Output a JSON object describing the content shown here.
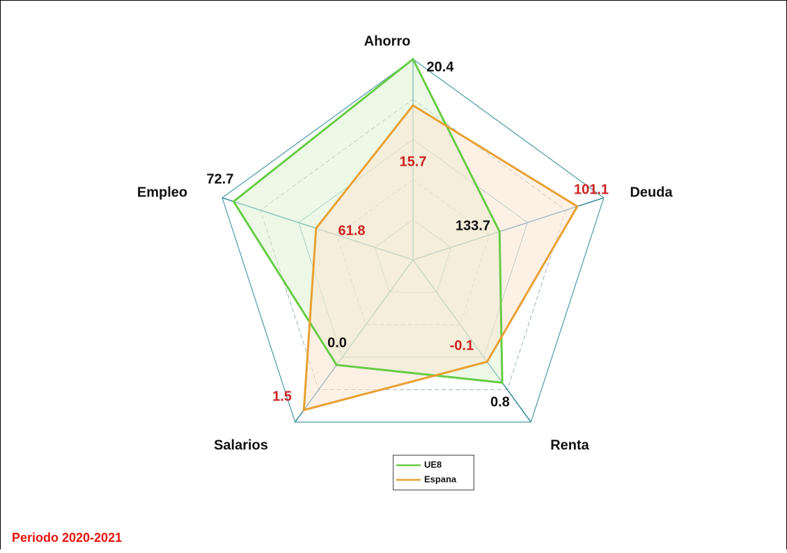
{
  "chart_data": {
    "type": "radar",
    "categories": [
      "Ahorro",
      "Deuda",
      "Renta",
      "Salarios",
      "Empleo"
    ],
    "axis_ranges": [
      [
        0,
        20.4
      ],
      [
        170,
        90
      ],
      [
        -4.5,
        2.5
      ],
      [
        -3.5,
        1.9
      ],
      [
        49,
        74.2
      ]
    ],
    "series": [
      {
        "name": "UE8",
        "color": "#66cc44",
        "fill": "#dff2d3",
        "label_color": "#111111",
        "values": [
          20.4,
          133.7,
          0.8,
          0,
          72.7
        ],
        "value_labels": [
          "20.4",
          "133.7",
          "0.8",
          "0.0",
          "72.7"
        ]
      },
      {
        "name": "Espana",
        "color": "#e8a030",
        "fill": "#fbe6d2",
        "label_color": "#cc2222",
        "values": [
          15.7,
          101.1,
          -0.1,
          1.5,
          61.8
        ],
        "value_labels": [
          "15.7",
          "101.1",
          "-0.1",
          "1.5",
          "61.8"
        ]
      }
    ],
    "footnote": "Periodo 2020-2021"
  }
}
